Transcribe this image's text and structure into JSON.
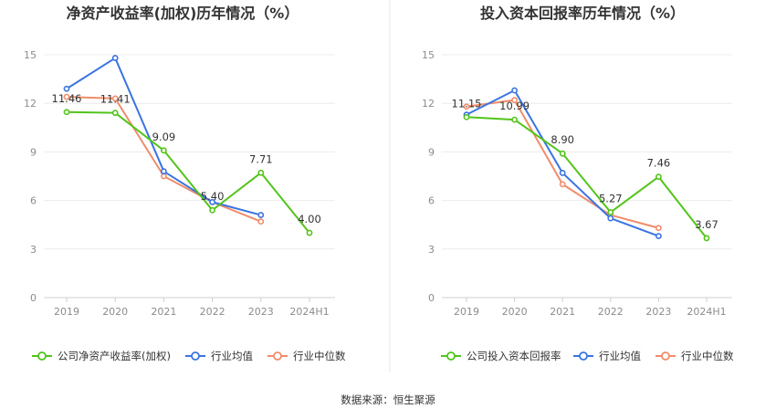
{
  "source": "数据来源：恒生聚源",
  "chart_data": [
    {
      "type": "line",
      "title": "净资产收益率(加权)历年情况（%）",
      "categories": [
        "2019",
        "2020",
        "2021",
        "2022",
        "2023",
        "2024H1"
      ],
      "ylim": [
        0,
        15
      ],
      "yticks": [
        0,
        3,
        6,
        9,
        12,
        15
      ],
      "grid": true,
      "legend_position": "bottom",
      "series": [
        {
          "name": "公司净资产收益率(加权)",
          "color": "#52c41a",
          "values": [
            11.46,
            11.41,
            9.09,
            5.4,
            7.71,
            4.0
          ],
          "labels": [
            "11.46",
            "11.41",
            "9.09",
            "5.40",
            "7.71",
            "4.00"
          ]
        },
        {
          "name": "行业均值",
          "color": "#3b74e0",
          "values": [
            12.9,
            14.8,
            7.8,
            5.9,
            5.1,
            null
          ]
        },
        {
          "name": "行业中位数",
          "color": "#f08c6a",
          "values": [
            12.4,
            12.3,
            7.5,
            5.9,
            4.7,
            null
          ]
        }
      ]
    },
    {
      "type": "line",
      "title": "投入资本回报率历年情况（%）",
      "categories": [
        "2019",
        "2020",
        "2021",
        "2022",
        "2023",
        "2024H1"
      ],
      "ylim": [
        0,
        15
      ],
      "yticks": [
        0,
        3,
        6,
        9,
        12,
        15
      ],
      "grid": true,
      "legend_position": "bottom",
      "series": [
        {
          "name": "公司投入资本回报率",
          "color": "#52c41a",
          "values": [
            11.15,
            10.99,
            8.9,
            5.27,
            7.46,
            3.67
          ],
          "labels": [
            "11.15",
            "10.99",
            "8.90",
            "5.27",
            "7.46",
            "3.67"
          ]
        },
        {
          "name": "行业均值",
          "color": "#3b74e0",
          "values": [
            11.3,
            12.8,
            7.7,
            4.9,
            3.8,
            null
          ]
        },
        {
          "name": "行业中位数",
          "color": "#f08c6a",
          "values": [
            11.8,
            12.2,
            7.0,
            5.1,
            4.3,
            null
          ]
        }
      ]
    }
  ]
}
